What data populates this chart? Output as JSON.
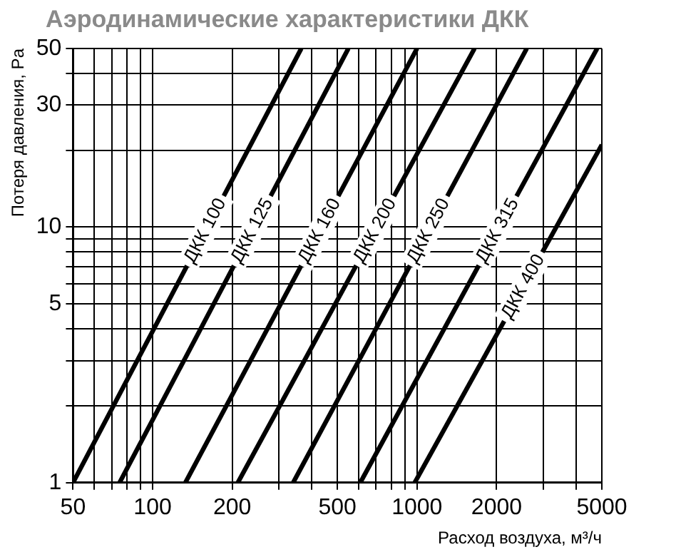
{
  "chart_data": {
    "type": "line",
    "title": "Аэродинамические характеристики ДКК",
    "xlabel": "Расход воздуха, м³/ч",
    "ylabel": "Потеря давления, Pa",
    "log": "xy",
    "grid": true,
    "legend": false,
    "marker": "none",
    "line_style": "solid",
    "xlim": [
      50,
      5000
    ],
    "ylim": [
      1,
      50
    ],
    "xticks": [
      50,
      {
        "value": 60,
        "label": null
      },
      {
        "value": 70,
        "label": null
      },
      {
        "value": 80,
        "label": null
      },
      {
        "value": 90,
        "label": null
      },
      100,
      200,
      {
        "value": 300,
        "label": null
      },
      {
        "value": 400,
        "label": null
      },
      500,
      {
        "value": 600,
        "label": null
      },
      {
        "value": 700,
        "label": null
      },
      {
        "value": 800,
        "label": null
      },
      {
        "value": 900,
        "label": null
      },
      1000,
      2000,
      {
        "value": 3000,
        "label": null
      },
      {
        "value": 4000,
        "label": null
      },
      5000
    ],
    "yticks": [
      1,
      {
        "value": 2,
        "label": null
      },
      {
        "value": 3,
        "label": null
      },
      {
        "value": 4,
        "label": null
      },
      5,
      {
        "value": 6,
        "label": null
      },
      {
        "value": 7,
        "label": null
      },
      {
        "value": 8,
        "label": null
      },
      {
        "value": 9,
        "label": null
      },
      10,
      {
        "value": 20,
        "label": null
      },
      30,
      {
        "value": 40,
        "label": null
      },
      50
    ],
    "series": [
      {
        "name": "ДКК 100",
        "color": "#000000",
        "x": [
          50,
          365
        ],
        "values": [
          1,
          50
        ]
      },
      {
        "name": "ДКК 125",
        "color": "#000000",
        "x": [
          75,
          550
        ],
        "values": [
          1,
          50
        ]
      },
      {
        "name": "ДКК 160",
        "color": "#000000",
        "x": [
          133,
          1000
        ],
        "values": [
          1,
          50
        ]
      },
      {
        "name": "ДКК 200",
        "color": "#000000",
        "x": [
          210,
          1650
        ],
        "values": [
          1,
          50
        ]
      },
      {
        "name": "ДКК 250",
        "color": "#000000",
        "x": [
          340,
          2600
        ],
        "values": [
          1,
          50
        ]
      },
      {
        "name": "ДКК 315",
        "color": "#000000",
        "x": [
          610,
          4800
        ],
        "values": [
          1,
          50
        ]
      },
      {
        "name": "ДКК 400",
        "color": "#000000",
        "x": [
          980,
          5000
        ],
        "values": [
          1,
          21
        ]
      }
    ]
  }
}
